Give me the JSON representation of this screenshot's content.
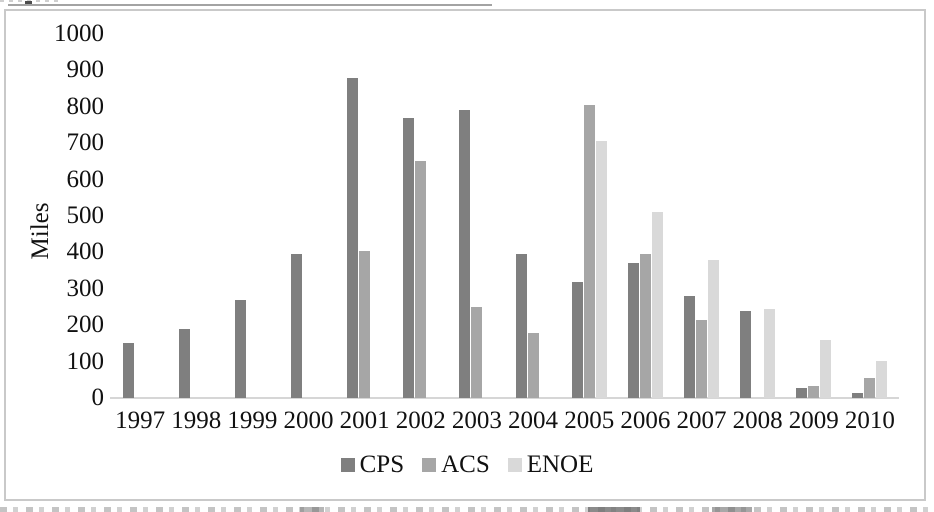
{
  "artifacts": {
    "top_cropped_text_line": true,
    "bottom_cropped_text_line": true
  },
  "chart_data": {
    "type": "bar",
    "title": "",
    "xlabel": "",
    "ylabel": "Miles",
    "ylim": [
      0,
      1000
    ],
    "ytick_step": 100,
    "yticks": [
      0,
      100,
      200,
      300,
      400,
      500,
      600,
      700,
      800,
      900,
      1000
    ],
    "grid": false,
    "legend_position": "bottom-center",
    "categories": [
      "1997",
      "1998",
      "1999",
      "2000",
      "2001",
      "2002",
      "2003",
      "2004",
      "2005",
      "2006",
      "2007",
      "2008",
      "2009",
      "2010"
    ],
    "series": [
      {
        "name": "CPS",
        "color": "#7f7f7f",
        "values": [
          150,
          190,
          270,
          395,
          880,
          770,
          790,
          395,
          318,
          370,
          280,
          238,
          28,
          15
        ]
      },
      {
        "name": "ACS",
        "color": "#a6a6a6",
        "values": [
          null,
          null,
          null,
          null,
          405,
          650,
          250,
          178,
          805,
          395,
          215,
          null,
          32,
          55
        ]
      },
      {
        "name": "ENOE",
        "color": "#d9d9d9",
        "values": [
          null,
          null,
          null,
          null,
          null,
          null,
          null,
          null,
          705,
          510,
          380,
          245,
          158,
          102
        ]
      }
    ],
    "axis_line_color": "#d6d6d6",
    "frame_border_color": "#c9c9c9",
    "text_color": "#111111"
  }
}
